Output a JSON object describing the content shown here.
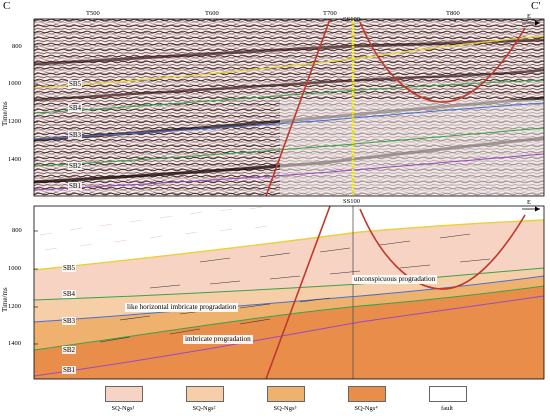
{
  "labels": {
    "corner_left": "C",
    "corner_right": "C'",
    "arrow_top": "E",
    "arrow_bottom": "E",
    "well_top": "SS100",
    "well_bottom": "SS100",
    "y_axis_title_top": "Time/ms",
    "y_axis_title_bottom": "Time/ms"
  },
  "traces": [
    "T500",
    "T600",
    "T700",
    "T800"
  ],
  "top_y_ticks": [
    "800",
    "1000",
    "1200",
    "1400"
  ],
  "bottom_y_ticks": [
    "800",
    "1000",
    "1200",
    "1400"
  ],
  "sequence_boundaries_top": [
    "SB5",
    "SB4",
    "SB3",
    "SB2",
    "SB1"
  ],
  "sequence_boundaries_bottom": [
    "SB5",
    "SB4",
    "SB3",
    "SB2",
    "SB1"
  ],
  "annotations": {
    "like_horizontal": "like horizontal imbricate progradation",
    "unconspicuous": "unconspicuous progradation",
    "imbricate": "imbricate progradation"
  },
  "legend": [
    {
      "label": "SQ-Ngs¹",
      "color": "#f7d3c4"
    },
    {
      "label": "SQ-Ngs²",
      "color": "#f6cfa8"
    },
    {
      "label": "SQ-Ngs³",
      "color": "#efb26e"
    },
    {
      "label": "SQ-Ngs⁴",
      "color": "#e88d4a"
    },
    {
      "label": "fault",
      "color": "#c0392b"
    }
  ],
  "colors": {
    "fault": "#c0392b",
    "sb5": "#e8d23a",
    "sb4": "#3aa24a",
    "sb3": "#4a6fd0",
    "sb2": "#3aa24a",
    "sb1": "#9a4ac0",
    "well": "#e8e800"
  }
}
